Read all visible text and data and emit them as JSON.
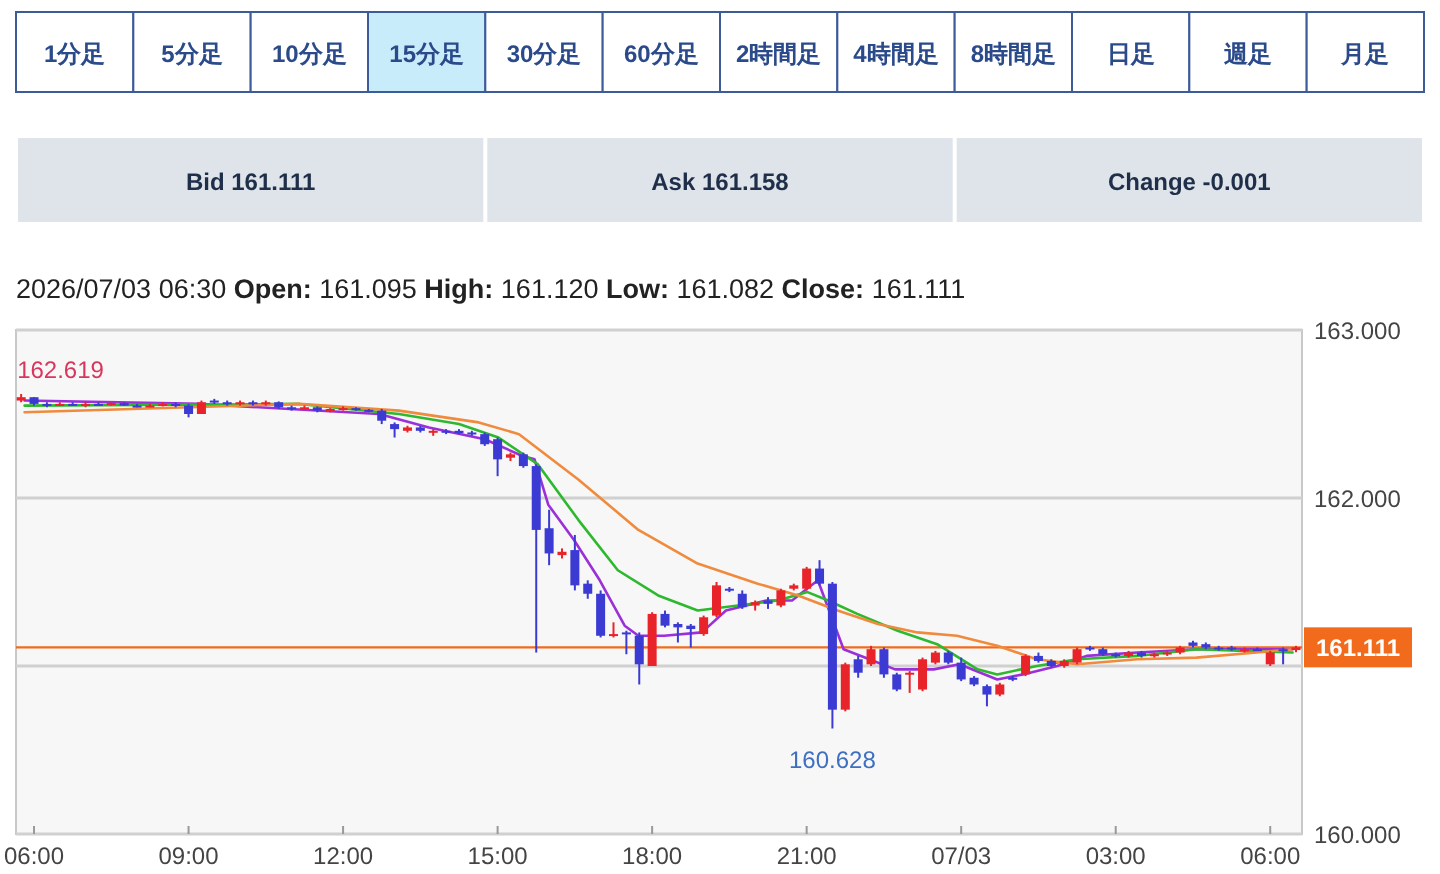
{
  "chart_data": {
    "type": "candlestick",
    "title": "2026/07/03 06:30   **Open:** 161.095   **High:** 161.120   **Low:** 161.082   **Close:** 161.111",
    "xlim": [
      "2026-07-02T05:39",
      "2026-07-03T06:37"
    ],
    "ylim": [
      160,
      163
    ],
    "xticks": [
      {
        "value": "2026-07-02T06:00",
        "label": "06:00"
      },
      {
        "value": "2026-07-02T09:00",
        "label": "09:00"
      },
      {
        "value": "2026-07-02T12:00",
        "label": "12:00"
      },
      {
        "value": "2026-07-02T15:00",
        "label": "15:00"
      },
      {
        "value": "2026-07-02T18:00",
        "label": "18:00"
      },
      {
        "value": "2026-07-02T21:00",
        "label": "21:00"
      },
      {
        "value": "2026-07-03T00:00",
        "label": "07/03"
      },
      {
        "value": "2026-07-03T03:00",
        "label": "03:00"
      },
      {
        "value": "2026-07-03T06:00",
        "label": "06:00"
      }
    ],
    "yticks": [
      {
        "value": 160,
        "label": "160.000"
      },
      {
        "value": 161,
        "label": null
      },
      {
        "value": 162,
        "label": "162.000"
      },
      {
        "value": 163,
        "label": "163.000"
      }
    ],
    "grid": "y",
    "ref_lines": [
      {
        "axis": "y",
        "value": 161.111,
        "label": "161.111",
        "color": "#f26a1b"
      }
    ],
    "annotations": [
      "1分足",
      "5分足",
      "10分足",
      "15分足",
      "30分足",
      "60分足",
      "2時間足",
      "4時間足",
      "8時間足",
      "日足",
      "週足",
      "月足",
      "Bid    161.111",
      "Ask    161.158",
      "Change    -0.001",
      {
        "text": "162.619",
        "x": "2026-07-02T05:45",
        "y": 162.619
      },
      {
        "text": "160.628",
        "x": "2026-07-02T21:30",
        "y": 160.628
      }
    ],
    "series": [
      {
        "type": "line",
        "color": "#9b30d9",
        "x": [
          "2026-07-02T05:49",
          "2026-07-02T09:13",
          "2026-07-02T12:42",
          "2026-07-02T13:40",
          "2026-07-02T14:45",
          "2026-07-02T15:29",
          "2026-07-02T15:43",
          "2026-07-02T15:59",
          "2026-07-02T16:29",
          "2026-07-02T16:59",
          "2026-07-02T17:28",
          "2026-07-02T17:44",
          "2026-07-02T18:14",
          "2026-07-02T18:58",
          "2026-07-02T19:26",
          "2026-07-02T20:13",
          "2026-07-02T20:43",
          "2026-07-02T21:13",
          "2026-07-02T21:43",
          "2026-07-02T22:13",
          "2026-07-02T22:43",
          "2026-07-02T23:28",
          "2026-07-02T23:58",
          "2026-07-03T00:42",
          "2026-07-03T01:12",
          "2026-07-03T01:52",
          "2026-07-03T02:26",
          "2026-07-03T03:25",
          "2026-07-03T04:34",
          "2026-07-03T06:26"
        ],
        "values": [
          162.58,
          162.56,
          162.5,
          162.42,
          162.35,
          162.25,
          162.23,
          161.96,
          161.75,
          161.51,
          161.24,
          161.18,
          161.18,
          161.2,
          161.33,
          161.39,
          161.39,
          161.51,
          161.1,
          161.04,
          160.98,
          160.98,
          161.01,
          160.92,
          160.95,
          161.0,
          161.06,
          161.08,
          161.1,
          161.1
        ]
      },
      {
        "type": "line",
        "color": "#2eb82e",
        "x": [
          "2026-07-02T05:49",
          "2026-07-02T11:09",
          "2026-07-02T13:05",
          "2026-07-02T14:15",
          "2026-07-02T15:01",
          "2026-07-02T15:47",
          "2026-07-02T16:34",
          "2026-07-02T17:20",
          "2026-07-02T18:07",
          "2026-07-02T18:53",
          "2026-07-02T19:40",
          "2026-07-02T20:26",
          "2026-07-02T21:01",
          "2026-07-02T21:25",
          "2026-07-02T21:59",
          "2026-07-02T22:46",
          "2026-07-02T23:32",
          "2026-07-03T00:19",
          "2026-07-03T00:42",
          "2026-07-03T01:28",
          "2026-07-03T02:15",
          "2026-07-03T03:25",
          "2026-07-03T04:34",
          "2026-07-03T06:26"
        ],
        "values": [
          162.55,
          162.56,
          162.5,
          162.44,
          162.36,
          162.2,
          161.87,
          161.57,
          161.42,
          161.33,
          161.36,
          161.39,
          161.44,
          161.39,
          161.31,
          161.21,
          161.13,
          160.98,
          160.95,
          161.0,
          161.04,
          161.06,
          161.1,
          161.08
        ]
      },
      {
        "type": "line",
        "color": "#f08a3c",
        "x": [
          "2026-07-02T05:49",
          "2026-07-02T11:09",
          "2026-07-02T13:05",
          "2026-07-02T14:38",
          "2026-07-02T15:25",
          "2026-07-02T16:34",
          "2026-07-02T17:44",
          "2026-07-02T18:53",
          "2026-07-02T20:03",
          "2026-07-02T20:50",
          "2026-07-02T21:36",
          "2026-07-02T22:23",
          "2026-07-02T23:09",
          "2026-07-02T23:55",
          "2026-07-03T00:42",
          "2026-07-03T01:28",
          "2026-07-03T02:15",
          "2026-07-03T03:25",
          "2026-07-03T04:34",
          "2026-07-03T05:44",
          "2026-07-03T06:26"
        ],
        "values": [
          162.51,
          162.56,
          162.52,
          162.45,
          162.38,
          162.11,
          161.81,
          161.61,
          161.49,
          161.42,
          161.33,
          161.25,
          161.2,
          161.18,
          161.12,
          161.04,
          161.01,
          161.04,
          161.05,
          161.08,
          161.1
        ]
      },
      {
        "color": "#e8242a",
        "x": [
          "2026-07-02T05:45",
          "2026-07-02T06:30",
          "2026-07-02T07:00",
          "2026-07-02T07:30",
          "2026-07-02T08:15",
          "2026-07-02T08:30",
          "2026-07-02T09:15",
          "2026-07-02T10:00",
          "2026-07-02T10:30",
          "2026-07-02T11:15",
          "2026-07-02T11:45",
          "2026-07-02T12:00",
          "2026-07-02T13:15",
          "2026-07-02T13:45",
          "2026-07-02T15:15",
          "2026-07-02T16:15",
          "2026-07-02T17:15",
          "2026-07-02T18:00",
          "2026-07-02T19:00",
          "2026-07-02T19:15",
          "2026-07-02T20:00",
          "2026-07-02T20:30",
          "2026-07-02T20:45",
          "2026-07-02T21:00",
          "2026-07-02T21:45",
          "2026-07-02T22:15",
          "2026-07-02T23:00",
          "2026-07-02T23:15",
          "2026-07-02T23:30",
          "2026-07-03T00:45",
          "2026-07-03T01:15",
          "2026-07-03T02:00",
          "2026-07-03T02:15",
          "2026-07-03T03:15",
          "2026-07-03T03:45",
          "2026-07-03T04:00",
          "2026-07-03T04:15",
          "2026-07-03T05:30",
          "2026-07-03T06:00",
          "2026-07-03T06:30"
        ],
        "ohlc": [
          [
            162.58,
            162.619,
            162.57,
            162.6
          ],
          [
            162.55,
            162.57,
            162.55,
            162.56
          ],
          [
            162.55,
            162.57,
            162.54,
            162.56
          ],
          [
            162.555,
            162.57,
            162.55,
            162.565
          ],
          [
            162.545,
            162.56,
            162.54,
            162.55
          ],
          [
            162.55,
            162.57,
            162.545,
            162.56
          ],
          [
            162.5,
            162.58,
            162.5,
            162.57
          ],
          [
            162.56,
            162.58,
            162.55,
            162.57
          ],
          [
            162.56,
            162.58,
            162.55,
            162.57
          ],
          [
            162.535,
            162.55,
            162.53,
            162.54
          ],
          [
            162.52,
            162.535,
            162.51,
            162.53
          ],
          [
            162.53,
            162.545,
            162.52,
            162.535
          ],
          [
            162.4,
            162.43,
            162.39,
            162.42
          ],
          [
            162.39,
            162.41,
            162.37,
            162.4
          ],
          [
            162.24,
            162.27,
            162.22,
            162.26
          ],
          [
            161.66,
            161.7,
            161.64,
            161.68
          ],
          [
            161.18,
            161.26,
            161.17,
            161.19
          ],
          [
            161.0,
            161.32,
            161.0,
            161.31
          ],
          [
            161.19,
            161.3,
            161.18,
            161.29
          ],
          [
            161.3,
            161.5,
            161.29,
            161.48
          ],
          [
            161.36,
            161.39,
            161.33,
            161.38
          ],
          [
            161.36,
            161.46,
            161.35,
            161.45
          ],
          [
            161.46,
            161.49,
            161.45,
            161.48
          ],
          [
            161.46,
            161.59,
            161.45,
            161.58
          ],
          [
            160.74,
            161.02,
            160.73,
            161.01
          ],
          [
            161.01,
            161.12,
            161.0,
            161.1
          ],
          [
            160.95,
            160.97,
            160.84,
            160.96
          ],
          [
            160.86,
            161.05,
            160.85,
            161.04
          ],
          [
            161.02,
            161.09,
            161.01,
            161.08
          ],
          [
            160.83,
            160.9,
            160.82,
            160.89
          ],
          [
            160.95,
            161.07,
            160.94,
            161.06
          ],
          [
            161.0,
            161.04,
            160.99,
            161.03
          ],
          [
            161.02,
            161.11,
            161.01,
            161.1
          ],
          [
            161.06,
            161.09,
            161.05,
            161.08
          ],
          [
            161.06,
            161.08,
            161.05,
            161.07
          ],
          [
            161.07,
            161.09,
            161.06,
            161.08
          ],
          [
            161.08,
            161.12,
            161.07,
            161.11
          ],
          [
            161.09,
            161.11,
            161.08,
            161.1
          ],
          [
            161.01,
            161.09,
            161.0,
            161.08
          ],
          [
            161.095,
            161.12,
            161.082,
            161.111
          ]
        ]
      },
      {
        "color": "#3b3bd4",
        "x": [
          "2026-07-02T06:00",
          "2026-07-02T06:15",
          "2026-07-02T06:45",
          "2026-07-02T07:15",
          "2026-07-02T07:45",
          "2026-07-02T08:00",
          "2026-07-02T08:45",
          "2026-07-02T09:00",
          "2026-07-02T09:30",
          "2026-07-02T09:45",
          "2026-07-02T10:15",
          "2026-07-02T10:45",
          "2026-07-02T11:00",
          "2026-07-02T11:30",
          "2026-07-02T12:15",
          "2026-07-02T12:30",
          "2026-07-02T12:45",
          "2026-07-02T13:00",
          "2026-07-02T13:30",
          "2026-07-02T14:00",
          "2026-07-02T14:15",
          "2026-07-02T14:30",
          "2026-07-02T14:45",
          "2026-07-02T15:00",
          "2026-07-02T15:30",
          "2026-07-02T15:45",
          "2026-07-02T16:00",
          "2026-07-02T16:30",
          "2026-07-02T16:45",
          "2026-07-02T17:00",
          "2026-07-02T17:30",
          "2026-07-02T17:45",
          "2026-07-02T18:15",
          "2026-07-02T18:30",
          "2026-07-02T18:45",
          "2026-07-02T19:30",
          "2026-07-02T19:45",
          "2026-07-02T20:15",
          "2026-07-02T21:15",
          "2026-07-02T21:30",
          "2026-07-02T22:00",
          "2026-07-02T22:30",
          "2026-07-02T22:45",
          "2026-07-02T23:45",
          "2026-07-03T00:00",
          "2026-07-03T00:15",
          "2026-07-03T00:30",
          "2026-07-03T01:00",
          "2026-07-03T01:30",
          "2026-07-03T01:45",
          "2026-07-03T02:30",
          "2026-07-03T02:45",
          "2026-07-03T03:00",
          "2026-07-03T03:30",
          "2026-07-03T04:30",
          "2026-07-03T04:45",
          "2026-07-03T05:00",
          "2026-07-03T05:15",
          "2026-07-03T05:45",
          "2026-07-03T06:15"
        ],
        "ohlc": [
          [
            162.6,
            162.6,
            162.55,
            162.56
          ],
          [
            162.56,
            162.57,
            162.54,
            162.55
          ],
          [
            162.56,
            162.57,
            162.55,
            162.55
          ],
          [
            162.56,
            162.57,
            162.55,
            162.555
          ],
          [
            162.565,
            162.57,
            162.55,
            162.55
          ],
          [
            162.55,
            162.56,
            162.54,
            162.545
          ],
          [
            162.56,
            162.57,
            162.54,
            162.55
          ],
          [
            162.55,
            162.56,
            162.48,
            162.5
          ],
          [
            162.58,
            162.59,
            162.56,
            162.57
          ],
          [
            162.57,
            162.58,
            162.55,
            162.565
          ],
          [
            162.57,
            162.58,
            162.55,
            162.56
          ],
          [
            162.57,
            162.575,
            162.53,
            162.54
          ],
          [
            162.54,
            162.55,
            162.52,
            162.535
          ],
          [
            162.54,
            162.545,
            162.51,
            162.52
          ],
          [
            162.535,
            162.54,
            162.52,
            162.525
          ],
          [
            162.525,
            162.53,
            162.51,
            162.52
          ],
          [
            162.52,
            162.53,
            162.44,
            162.46
          ],
          [
            162.44,
            162.45,
            162.36,
            162.41
          ],
          [
            162.42,
            162.43,
            162.39,
            162.4
          ],
          [
            162.4,
            162.41,
            162.38,
            162.39
          ],
          [
            162.4,
            162.41,
            162.38,
            162.385
          ],
          [
            162.39,
            162.4,
            162.37,
            162.38
          ],
          [
            162.38,
            162.39,
            162.31,
            162.32
          ],
          [
            162.35,
            162.36,
            162.13,
            162.23
          ],
          [
            162.26,
            162.27,
            162.18,
            162.19
          ],
          [
            162.19,
            162.2,
            161.08,
            161.81
          ],
          [
            161.82,
            161.93,
            161.6,
            161.67
          ],
          [
            161.69,
            161.78,
            161.45,
            161.48
          ],
          [
            161.49,
            161.51,
            161.4,
            161.43
          ],
          [
            161.43,
            161.45,
            161.17,
            161.18
          ],
          [
            161.2,
            161.21,
            161.07,
            161.19
          ],
          [
            161.18,
            161.2,
            160.89,
            161.01
          ],
          [
            161.31,
            161.33,
            161.23,
            161.24
          ],
          [
            161.25,
            161.26,
            161.14,
            161.23
          ],
          [
            161.24,
            161.25,
            161.11,
            161.22
          ],
          [
            161.46,
            161.47,
            161.44,
            161.45
          ],
          [
            161.43,
            161.45,
            161.34,
            161.35
          ],
          [
            161.39,
            161.41,
            161.34,
            161.37
          ],
          [
            161.58,
            161.63,
            161.48,
            161.49
          ],
          [
            161.49,
            161.5,
            160.628,
            160.74
          ],
          [
            161.04,
            161.06,
            160.93,
            160.96
          ],
          [
            161.1,
            161.11,
            160.93,
            160.95
          ],
          [
            160.95,
            160.96,
            160.85,
            160.86
          ],
          [
            161.08,
            161.09,
            161.01,
            161.02
          ],
          [
            161.02,
            161.05,
            160.91,
            160.92
          ],
          [
            160.93,
            160.94,
            160.88,
            160.89
          ],
          [
            160.88,
            160.89,
            160.76,
            160.83
          ],
          [
            160.93,
            160.94,
            160.91,
            160.92
          ],
          [
            161.06,
            161.08,
            161.02,
            161.03
          ],
          [
            161.03,
            161.04,
            160.99,
            161.0
          ],
          [
            161.11,
            161.12,
            161.09,
            161.1
          ],
          [
            161.1,
            161.11,
            161.06,
            161.07
          ],
          [
            161.07,
            161.08,
            161.05,
            161.06
          ],
          [
            161.08,
            161.09,
            161.05,
            161.06
          ],
          [
            161.14,
            161.15,
            161.11,
            161.12
          ],
          [
            161.13,
            161.14,
            161.1,
            161.11
          ],
          [
            161.11,
            161.12,
            161.09,
            161.1
          ],
          [
            161.11,
            161.12,
            161.09,
            161.1
          ],
          [
            161.1,
            161.11,
            161.09,
            161.095
          ],
          [
            161.1,
            161.11,
            161.01,
            161.09
          ]
        ]
      }
    ]
  }
}
